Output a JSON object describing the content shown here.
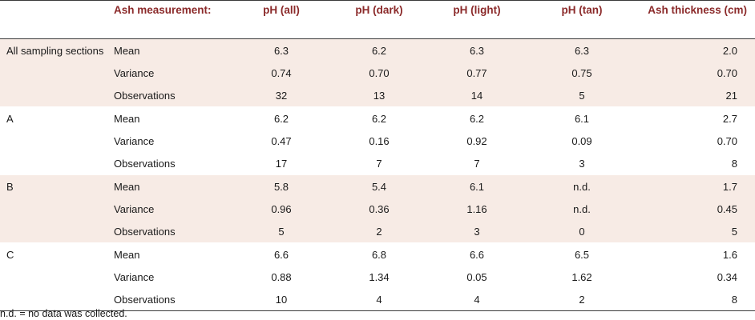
{
  "table": {
    "headers": {
      "section": "",
      "measurement": "Ash measurement:",
      "ph_all": "pH (all)",
      "ph_dark": "pH (dark)",
      "ph_light": "pH (light)",
      "ph_tan": "pH (tan)",
      "ash_thickness": "Ash thickness (cm)"
    },
    "groups": [
      {
        "section": "All sampling sections",
        "rows": [
          {
            "measurement": "Mean",
            "ph_all": "6.3",
            "ph_dark": "6.2",
            "ph_light": "6.3",
            "ph_tan": "6.3",
            "ash_thickness": "2.0"
          },
          {
            "measurement": "Variance",
            "ph_all": "0.74",
            "ph_dark": "0.70",
            "ph_light": "0.77",
            "ph_tan": "0.75",
            "ash_thickness": "0.70"
          },
          {
            "measurement": "Observations",
            "ph_all": "32",
            "ph_dark": "13",
            "ph_light": "14",
            "ph_tan": "5",
            "ash_thickness": "21"
          }
        ]
      },
      {
        "section": "A",
        "rows": [
          {
            "measurement": "Mean",
            "ph_all": "6.2",
            "ph_dark": "6.2",
            "ph_light": "6.2",
            "ph_tan": "6.1",
            "ash_thickness": "2.7"
          },
          {
            "measurement": "Variance",
            "ph_all": "0.47",
            "ph_dark": "0.16",
            "ph_light": "0.92",
            "ph_tan": "0.09",
            "ash_thickness": "0.70"
          },
          {
            "measurement": "Observations",
            "ph_all": "17",
            "ph_dark": "7",
            "ph_light": "7",
            "ph_tan": "3",
            "ash_thickness": "8"
          }
        ]
      },
      {
        "section": "B",
        "rows": [
          {
            "measurement": "Mean",
            "ph_all": "5.8",
            "ph_dark": "5.4",
            "ph_light": "6.1",
            "ph_tan": "n.d.",
            "ash_thickness": "1.7"
          },
          {
            "measurement": "Variance",
            "ph_all": "0.96",
            "ph_dark": "0.36",
            "ph_light": "1.16",
            "ph_tan": "n.d.",
            "ash_thickness": "0.45"
          },
          {
            "measurement": "Observations",
            "ph_all": "5",
            "ph_dark": "2",
            "ph_light": "3",
            "ph_tan": "0",
            "ash_thickness": "5"
          }
        ]
      },
      {
        "section": "C",
        "rows": [
          {
            "measurement": "Mean",
            "ph_all": "6.6",
            "ph_dark": "6.8",
            "ph_light": "6.6",
            "ph_tan": "6.5",
            "ash_thickness": "1.6"
          },
          {
            "measurement": "Variance",
            "ph_all": "0.88",
            "ph_dark": "1.34",
            "ph_light": "0.05",
            "ph_tan": "1.62",
            "ash_thickness": "0.34"
          },
          {
            "measurement": "Observations",
            "ph_all": "10",
            "ph_dark": "4",
            "ph_light": "4",
            "ph_tan": "2",
            "ash_thickness": "8"
          }
        ]
      }
    ],
    "footnote": "n.d. = no data was collected."
  },
  "colors": {
    "header_text": "#8b2a2a",
    "shaded_row": "#f7ebe5",
    "rule": "#3a3a3a"
  }
}
